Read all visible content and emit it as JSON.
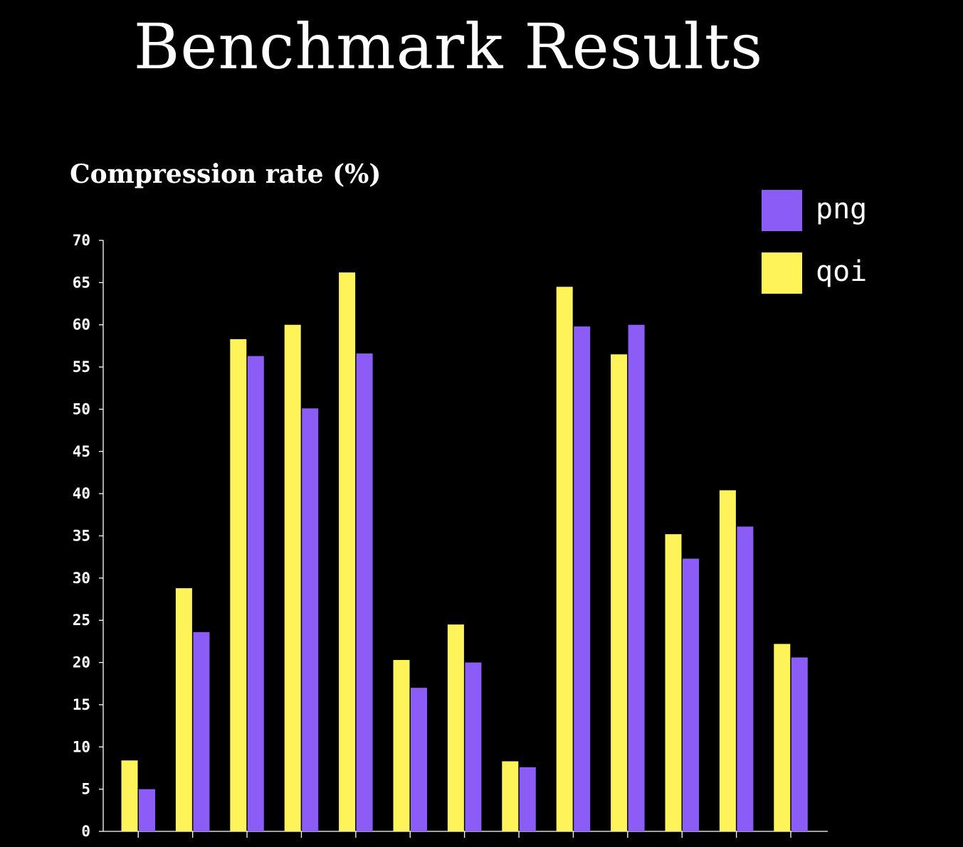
{
  "page": {
    "title": "Benchmark Results"
  },
  "colors": {
    "background": "#000000",
    "axis": "#ffffff",
    "png": "#8b5cf6",
    "qoi": "#fef359"
  },
  "chart_data": {
    "type": "bar",
    "title": "",
    "subtitle": "Compression rate (%)",
    "xlabel": "",
    "ylabel": "",
    "ylim": [
      0,
      70
    ],
    "yticks": [
      0,
      5,
      10,
      15,
      20,
      25,
      30,
      35,
      40,
      45,
      50,
      55,
      60,
      65,
      70
    ],
    "grid": false,
    "legend_position": "top-right",
    "group_count": 13,
    "series": [
      {
        "name": "qoi",
        "color": "#fef359",
        "values": [
          8.4,
          28.8,
          58.3,
          60.0,
          66.2,
          20.3,
          24.5,
          8.3,
          64.5,
          56.5,
          35.2,
          40.4,
          22.2
        ]
      },
      {
        "name": "png",
        "color": "#8b5cf6",
        "values": [
          5.0,
          23.6,
          56.3,
          50.1,
          56.6,
          17.0,
          20.0,
          7.6,
          59.8,
          60.0,
          32.3,
          36.1,
          20.6
        ]
      }
    ]
  },
  "legend": {
    "items": [
      {
        "label": "png",
        "color": "#8b5cf6"
      },
      {
        "label": "qoi",
        "color": "#fef359"
      }
    ]
  }
}
